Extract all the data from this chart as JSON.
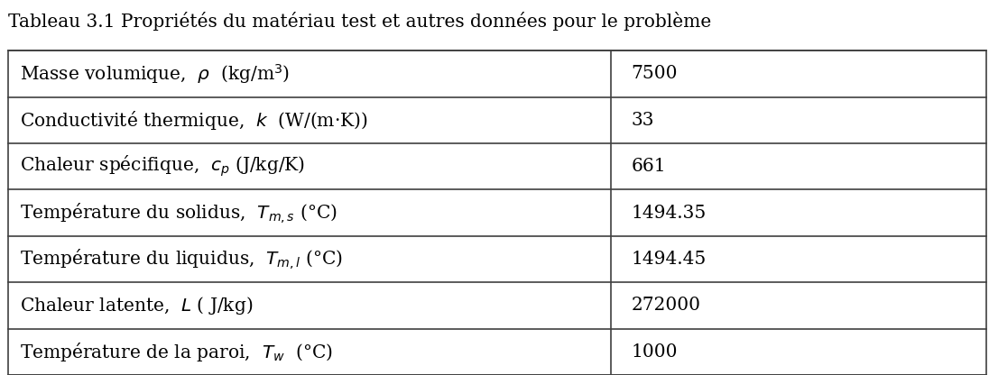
{
  "title": "Tableau 3.1 Propriétés du matériau test et autres données pour le problème",
  "rows": [
    {
      "label": "Masse volumique,  $\\rho$  (kg/m$^3$)",
      "value": "7500"
    },
    {
      "label": "Conductivité thermique,  $k$  (W/(m·K))",
      "value": "33"
    },
    {
      "label": "Chaleur spécifique,  $c_p$ (J/kg/K)",
      "value": "661"
    },
    {
      "label": "Température du solidus,  $T_{m,s}$ (°C)",
      "value": "1494.35"
    },
    {
      "label": "Température du liquidus,  $T_{m,l}$ (°C)",
      "value": "1494.45"
    },
    {
      "label": "Chaleur latente,  $L$ ( J/kg)",
      "value": "272000"
    },
    {
      "label": "Température de la paroi,  $T_w$  (°C)",
      "value": "1000"
    }
  ],
  "col_split": 0.618,
  "background_color": "#ffffff",
  "text_color": "#000000",
  "border_color": "#404040",
  "title_fontsize": 14.5,
  "cell_fontsize": 14.5,
  "value_fontsize": 14.5
}
